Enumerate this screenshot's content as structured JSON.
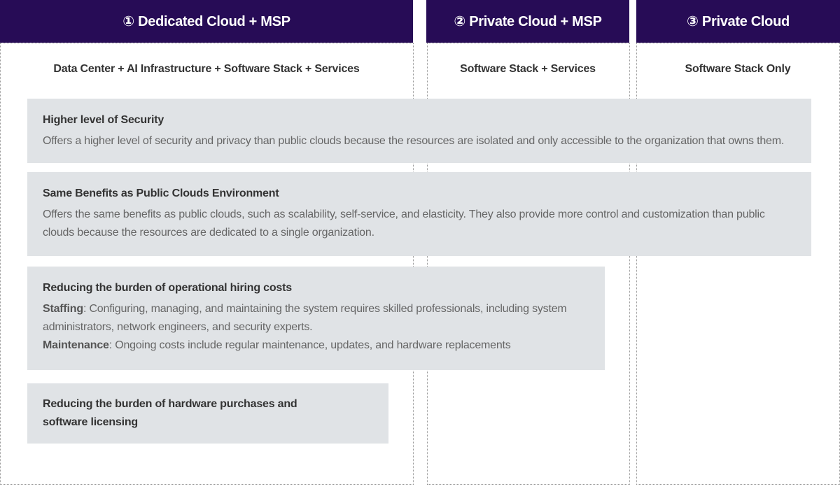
{
  "columns": [
    {
      "title": "① Dedicated Cloud + MSP",
      "subtitle": "Data Center + AI Infrastructure + Software Stack + Services"
    },
    {
      "title": "② Private Cloud + MSP",
      "subtitle": "Software Stack + Services"
    },
    {
      "title": "③ Private Cloud",
      "subtitle": "Software Stack Only"
    }
  ],
  "benefits": [
    {
      "title": "Higher level of Security",
      "text": "Offers a higher level of security and privacy than public clouds because the resources are isolated and only accessible to the organization that owns them."
    },
    {
      "title": "Same Benefits as Public Clouds Environment",
      "text": "Offers the same benefits as public clouds, such as scalability, self-service, and elasticity. They also provide more control and customization than public clouds because the resources are dedicated to a single organization."
    },
    {
      "title": "Reducing the burden of operational hiring costs",
      "items": [
        {
          "label": "Staffing",
          "text": ": Configuring, managing, and maintaining the system requires skilled professionals, including system administrators, network engineers, and security experts."
        },
        {
          "label": "Maintenance",
          "text": ": Ongoing costs include regular maintenance, updates, and hardware replacements"
        }
      ]
    },
    {
      "title": "Reducing the burden of hardware purchases and software licensing"
    }
  ],
  "colors": {
    "header": "#270c56",
    "box": "#e0e3e6"
  }
}
